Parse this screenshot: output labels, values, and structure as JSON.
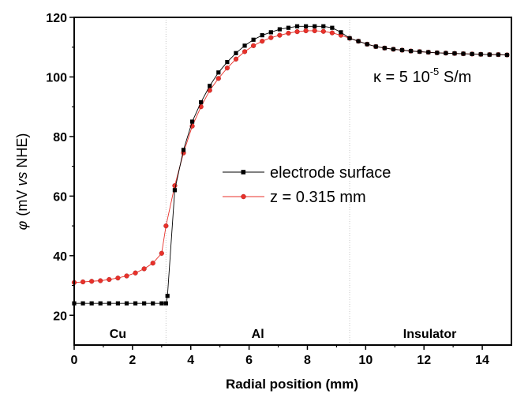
{
  "chart_data": {
    "type": "line",
    "xlabel": "Radial position (mm)",
    "ylabel_symbol": "φ",
    "ylabel_open": "(mV ",
    "ylabel_vs": "vs",
    "ylabel_close": " NHE)",
    "xlim": [
      0,
      15
    ],
    "ylim": [
      10,
      120
    ],
    "x_ticks": [
      "0",
      "2",
      "4",
      "6",
      "8",
      "10",
      "12",
      "14"
    ],
    "y_ticks": [
      "20",
      "40",
      "60",
      "80",
      "100",
      "120"
    ],
    "grid": false,
    "legend_placement": "center",
    "annotation": {
      "base": "κ = 5 10",
      "exponent": "-5",
      "unit": " S/m"
    },
    "regions": [
      {
        "label": "Cu",
        "x_center": 1.5
      },
      {
        "label": "Al",
        "x_center": 6.3
      },
      {
        "label": "Insulator",
        "x_center": 12.2
      }
    ],
    "boundaries": [
      3.15,
      9.45
    ],
    "series": [
      {
        "name": "electrode surface",
        "color": "#000000",
        "marker": "square",
        "x": [
          0,
          0.3,
          0.6,
          0.9,
          1.2,
          1.5,
          1.8,
          2.1,
          2.4,
          2.7,
          3.0,
          3.15,
          3.2,
          3.45,
          3.75,
          4.05,
          4.35,
          4.65,
          4.95,
          5.25,
          5.55,
          5.85,
          6.15,
          6.45,
          6.75,
          7.05,
          7.35,
          7.65,
          7.95,
          8.25,
          8.55,
          8.85,
          9.15,
          9.45,
          9.75,
          10.05,
          10.35,
          10.65,
          10.95,
          11.25,
          11.55,
          11.85,
          12.15,
          12.45,
          12.75,
          13.05,
          13.35,
          13.65,
          13.95,
          14.25,
          14.55,
          14.85
        ],
        "y": [
          24,
          24,
          24,
          24,
          24,
          24,
          24,
          24,
          24,
          24,
          24,
          24,
          26.5,
          62,
          75.5,
          85,
          91.5,
          97,
          101.5,
          105,
          108,
          110.5,
          112.5,
          114,
          115,
          116,
          116.5,
          117,
          117,
          117,
          117,
          116.5,
          115,
          113,
          112,
          111,
          110.2,
          109.7,
          109.3,
          109,
          108.7,
          108.5,
          108.3,
          108.1,
          108,
          107.9,
          107.8,
          107.7,
          107.6,
          107.5,
          107.5,
          107.4
        ]
      },
      {
        "name": "z = 0.315 mm",
        "color": "#e8312a",
        "marker": "circle",
        "x": [
          0,
          0.3,
          0.6,
          0.9,
          1.2,
          1.5,
          1.8,
          2.1,
          2.4,
          2.7,
          3.0,
          3.15,
          3.45,
          3.75,
          4.05,
          4.35,
          4.65,
          4.95,
          5.25,
          5.55,
          5.85,
          6.15,
          6.45,
          6.75,
          7.05,
          7.35,
          7.65,
          7.95,
          8.25,
          8.55,
          8.85,
          9.15,
          9.45,
          9.75,
          10.05,
          10.35,
          10.65,
          10.95,
          11.25,
          11.55,
          11.85,
          12.15,
          12.45,
          12.75,
          13.05,
          13.35,
          13.65,
          13.95,
          14.25,
          14.55,
          14.85
        ],
        "y": [
          31,
          31.2,
          31.4,
          31.6,
          32,
          32.5,
          33.2,
          34.2,
          35.6,
          37.5,
          40.8,
          50,
          63.5,
          74.5,
          83.5,
          90,
          95.5,
          99.5,
          103,
          106,
          108.5,
          110.5,
          112,
          113.2,
          114,
          114.7,
          115.2,
          115.5,
          115.5,
          115.3,
          114.8,
          114,
          113,
          112,
          111,
          110.2,
          109.7,
          109.3,
          109,
          108.7,
          108.5,
          108.3,
          108.1,
          108,
          107.9,
          107.8,
          107.7,
          107.6,
          107.5,
          107.5,
          107.4
        ]
      }
    ]
  }
}
